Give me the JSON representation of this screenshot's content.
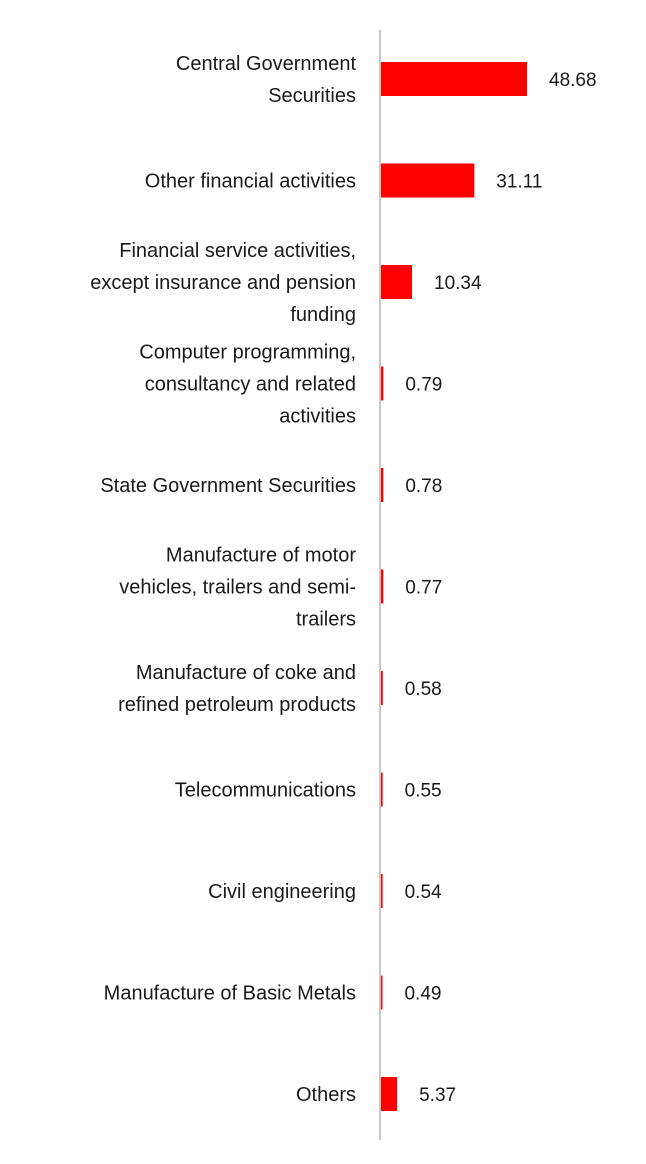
{
  "chart_data": {
    "type": "bar",
    "orientation": "horizontal",
    "title": "",
    "xlabel": "",
    "ylabel": "",
    "categories": [
      [
        "Central Government",
        "Securities"
      ],
      [
        "Other financial activities"
      ],
      [
        "Financial service activities,",
        "except insurance and pension",
        "funding"
      ],
      [
        "Computer programming,",
        "consultancy and related",
        "activities"
      ],
      [
        "State Government Securities"
      ],
      [
        "Manufacture of motor",
        "vehicles, trailers and semi-",
        "trailers"
      ],
      [
        "Manufacture of coke and",
        "refined petroleum products"
      ],
      [
        "Telecommunications"
      ],
      [
        "Civil engineering"
      ],
      [
        "Manufacture of Basic Metals"
      ],
      [
        "Others"
      ]
    ],
    "values": [
      48.68,
      31.11,
      10.34,
      0.79,
      0.78,
      0.77,
      0.58,
      0.55,
      0.54,
      0.49,
      5.37
    ],
    "value_labels": [
      "48.68",
      "31.11",
      "10.34",
      "0.79",
      "0.78",
      "0.77",
      "0.58",
      "0.55",
      "0.54",
      "0.49",
      "5.37"
    ],
    "xlim": [
      0,
      48.68
    ],
    "grid": false,
    "legend": "none",
    "bar_color": "#ff0000",
    "axis_color": "#c8c8c8"
  }
}
